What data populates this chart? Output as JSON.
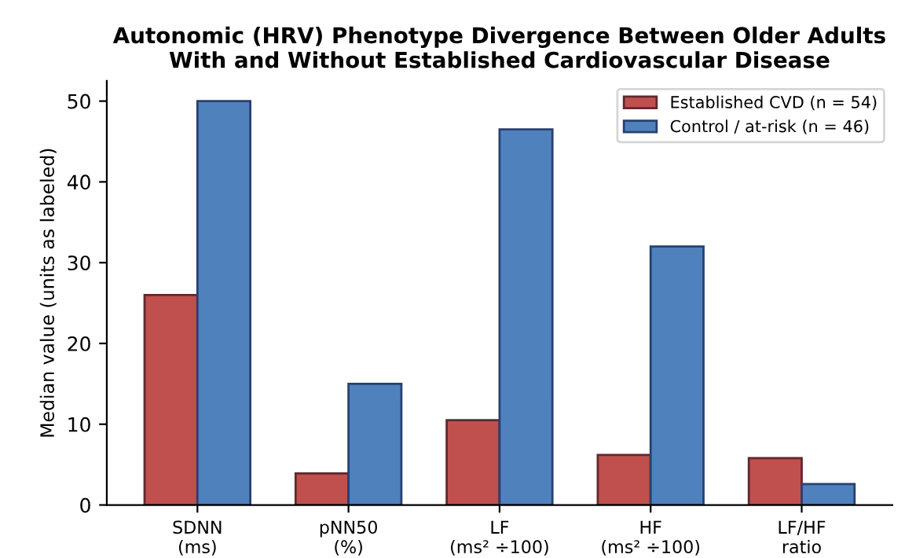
{
  "chart_data": {
    "type": "bar",
    "title": "Autonomic (HRV) Phenotype Divergence Between Older Adults\nWith and Without Established Cardiovascular Disease",
    "ylabel": "Median value (units as labeled)",
    "categories": [
      "SDNN\n(ms)",
      "pNN50\n(%)",
      "LF\n(ms² ÷100)",
      "HF\n(ms² ÷100)",
      "LF/HF\nratio"
    ],
    "series": [
      {
        "name": "Established CVD (n = 54)",
        "color": "#c0504d",
        "values": [
          26,
          3.9,
          10.5,
          6.2,
          5.8
        ]
      },
      {
        "name": "Control / at-risk (n = 46)",
        "color": "#4f81bd",
        "values": [
          50,
          15,
          46.5,
          32,
          2.6
        ]
      }
    ],
    "ylim": [
      0,
      52.5
    ],
    "yticks": [
      0,
      10,
      20,
      30,
      40,
      50
    ],
    "grid": false,
    "legend": "top right"
  }
}
